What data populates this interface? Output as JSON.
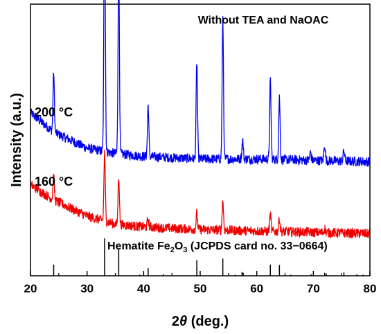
{
  "chart_data": {
    "type": "line",
    "title": "Without TEA and NaOAC",
    "xlabel_italic": "θ",
    "xlabel_prefix": "2",
    "xlabel_suffix": " (deg.)",
    "ylabel": "Intensity (a.u.)",
    "xlim": [
      20,
      80
    ],
    "xticks": [
      20,
      30,
      40,
      50,
      60,
      70,
      80
    ],
    "tick_labels": [
      "20",
      "30",
      "40",
      "50",
      "60",
      "70",
      "80"
    ],
    "grid": false,
    "series": [
      {
        "name": "200 °C",
        "color": "#0000ee",
        "baseline": [
          [
            20,
            0.6
          ],
          [
            24,
            0.53
          ],
          [
            30,
            0.47
          ],
          [
            35,
            0.45
          ],
          [
            40,
            0.44
          ],
          [
            50,
            0.43
          ],
          [
            60,
            0.43
          ],
          [
            70,
            0.425
          ],
          [
            80,
            0.42
          ]
        ],
        "noise": 0.018,
        "peaks": [
          [
            24.1,
            0.22
          ],
          [
            33.1,
            1.0
          ],
          [
            35.6,
            0.7
          ],
          [
            40.8,
            0.19
          ],
          [
            49.4,
            0.36
          ],
          [
            54.0,
            0.51
          ],
          [
            57.5,
            0.07
          ],
          [
            62.4,
            0.29
          ],
          [
            64.0,
            0.23
          ],
          [
            69.5,
            0.03
          ],
          [
            72.0,
            0.06
          ],
          [
            75.4,
            0.04
          ]
        ]
      },
      {
        "name": "160 °C",
        "color": "#ee0000",
        "baseline": [
          [
            20,
            0.335
          ],
          [
            24,
            0.28
          ],
          [
            30,
            0.22
          ],
          [
            35,
            0.19
          ],
          [
            40,
            0.18
          ],
          [
            50,
            0.17
          ],
          [
            60,
            0.165
          ],
          [
            70,
            0.16
          ],
          [
            80,
            0.155
          ]
        ],
        "noise": 0.018,
        "peaks": [
          [
            24.1,
            0.09
          ],
          [
            33.1,
            0.25
          ],
          [
            35.6,
            0.18
          ],
          [
            40.8,
            0.03
          ],
          [
            49.4,
            0.06
          ],
          [
            54.0,
            0.11
          ],
          [
            62.4,
            0.06
          ],
          [
            64.0,
            0.05
          ],
          [
            72.0,
            0.015
          ]
        ]
      }
    ],
    "reference": {
      "label_prefix": "Hematite Fe",
      "label_sub1": "2",
      "label_mid": "O",
      "label_sub2": "3",
      "label_suffix": " (JCPDS card no. 33−0664)",
      "lines": [
        [
          24.1,
          0.3
        ],
        [
          33.1,
          1.0
        ],
        [
          35.6,
          0.72
        ],
        [
          39.3,
          0.03
        ],
        [
          40.8,
          0.2
        ],
        [
          43.5,
          0.04
        ],
        [
          49.4,
          0.42
        ],
        [
          54.0,
          0.46
        ],
        [
          56.2,
          0.03
        ],
        [
          57.4,
          0.1
        ],
        [
          57.6,
          0.08
        ],
        [
          62.4,
          0.3
        ],
        [
          64.0,
          0.29
        ],
        [
          66.0,
          0.03
        ],
        [
          69.6,
          0.04
        ],
        [
          72.0,
          0.08
        ],
        [
          72.3,
          0.06
        ],
        [
          75.4,
          0.09
        ],
        [
          77.7,
          0.04
        ],
        [
          78.8,
          0.03
        ]
      ]
    }
  }
}
